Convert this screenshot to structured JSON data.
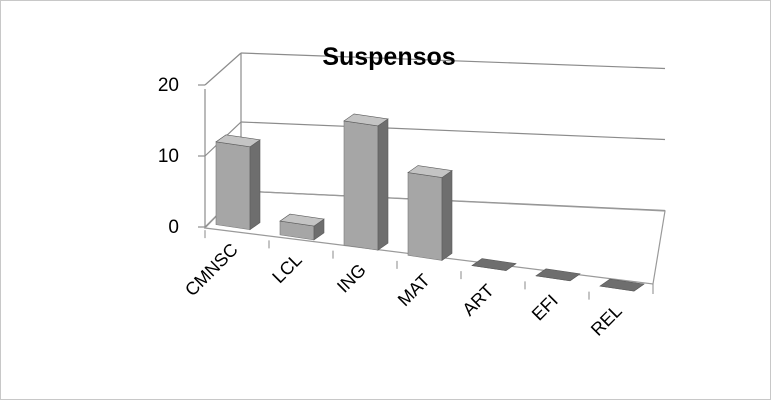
{
  "chart_data": {
    "type": "bar",
    "title": "Suspensos",
    "categories": [
      "CMNSC",
      "LCL",
      "ING",
      "MAT",
      "ART",
      "EFI",
      "REL"
    ],
    "values": [
      12,
      2,
      18,
      12,
      0,
      0,
      0
    ],
    "yticks": [
      "0",
      "10",
      "20"
    ],
    "ylim": [
      0,
      20
    ],
    "grid": true,
    "legend": "none",
    "colors": {
      "bar_front": "#a6a6a6",
      "bar_side": "#6e6e6e",
      "bar_top": "#c4c4c4",
      "grid": "#8c8c8c"
    }
  }
}
